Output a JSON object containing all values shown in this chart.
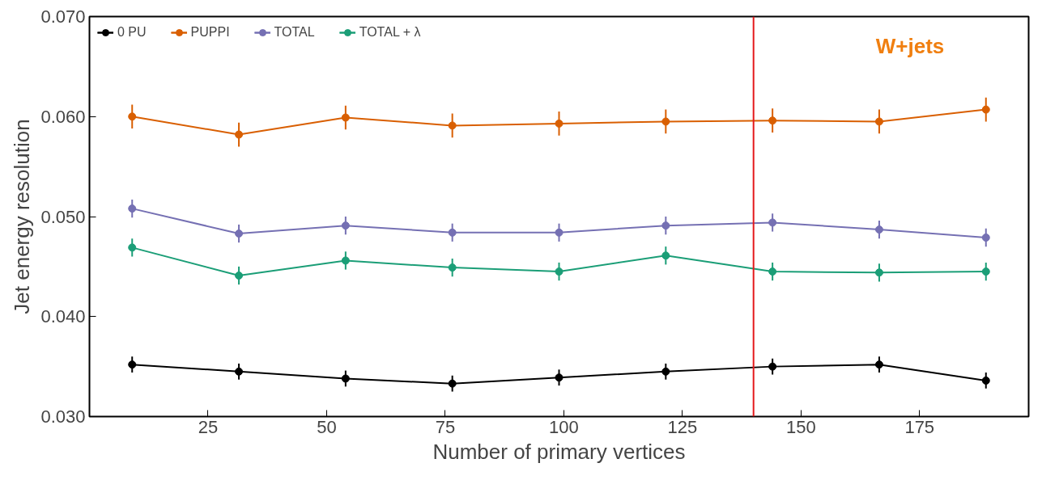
{
  "chart_data": {
    "type": "line",
    "xlabel": "Number of primary vertices",
    "ylabel": "Jet energy resolution",
    "x": [
      9,
      31.5,
      54,
      76.5,
      99,
      121.5,
      144,
      166.5,
      189
    ],
    "xlim": [
      0,
      198
    ],
    "xticks": [
      25,
      50,
      75,
      100,
      125,
      150,
      175
    ],
    "ylim": [
      0.03,
      0.07
    ],
    "yticks": [
      {
        "value": 0.03,
        "label": "0.030"
      },
      {
        "value": 0.04,
        "label": "0.040"
      },
      {
        "value": 0.05,
        "label": "0.050"
      },
      {
        "value": 0.06,
        "label": "0.060"
      },
      {
        "value": 0.07,
        "label": "0.070"
      }
    ],
    "series": [
      {
        "name": "0 PU",
        "color": "#000000",
        "values": [
          0.0352,
          0.0345,
          0.0338,
          0.0333,
          0.0339,
          0.0345,
          0.035,
          0.0352,
          0.0336
        ],
        "errors": [
          0.0008,
          0.0008,
          0.0008,
          0.0008,
          0.0008,
          0.0008,
          0.0008,
          0.0008,
          0.0008
        ]
      },
      {
        "name": "PUPPI",
        "color": "#d95f02",
        "values": [
          0.06,
          0.0582,
          0.0599,
          0.0591,
          0.0593,
          0.0595,
          0.0596,
          0.0595,
          0.0607
        ],
        "errors": [
          0.0012,
          0.0012,
          0.0012,
          0.0012,
          0.0012,
          0.0012,
          0.0012,
          0.0012,
          0.0012
        ]
      },
      {
        "name": "TOTAL",
        "color": "#7570b3",
        "values": [
          0.0508,
          0.0483,
          0.0491,
          0.0484,
          0.0484,
          0.0491,
          0.0494,
          0.0487,
          0.0479
        ],
        "errors": [
          0.0009,
          0.0009,
          0.0009,
          0.0009,
          0.0009,
          0.0009,
          0.0009,
          0.0009,
          0.0009
        ]
      },
      {
        "name": "TOTAL + λ",
        "color": "#1b9e77",
        "values": [
          0.0469,
          0.0441,
          0.0456,
          0.0449,
          0.0445,
          0.0461,
          0.0445,
          0.0444,
          0.0445
        ],
        "errors": [
          0.0009,
          0.0009,
          0.0009,
          0.0009,
          0.0009,
          0.0009,
          0.0009,
          0.0009,
          0.0009
        ]
      }
    ],
    "ref_lines": [
      {
        "axis": "x",
        "value": 140,
        "label": null,
        "color": "#e41a1c"
      }
    ],
    "annotations": [
      "W+jets"
    ],
    "marker": "circle",
    "grid": false,
    "legend": "top left"
  }
}
